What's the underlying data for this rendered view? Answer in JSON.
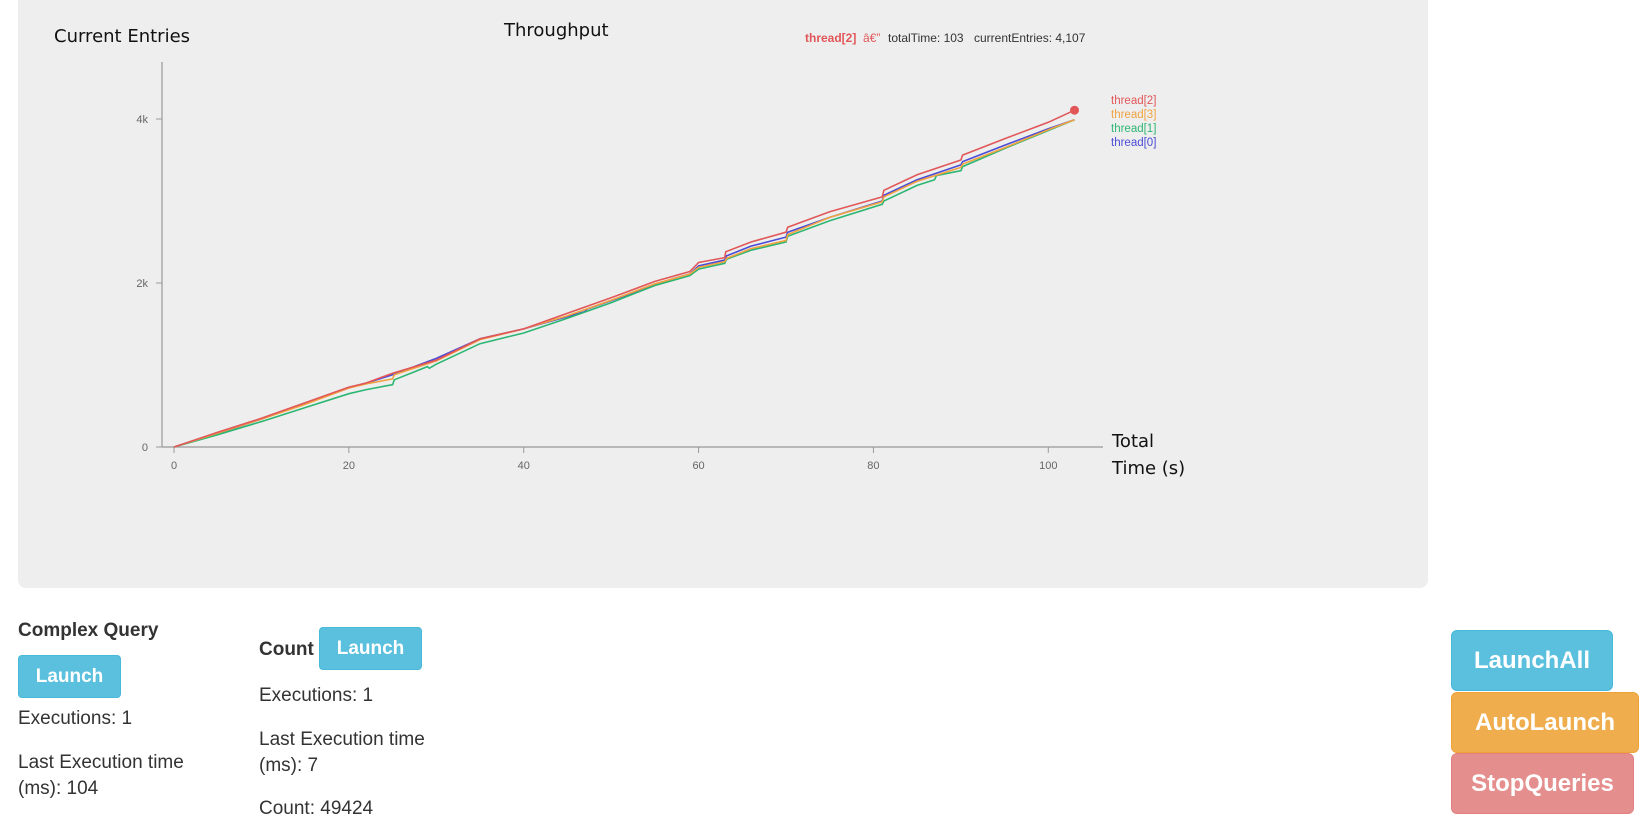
{
  "chart": {
    "title": "Throughput",
    "y_axis_label": "Current Entries",
    "x_axis_label_line1": "Total",
    "x_axis_label_line2": "Time (s)",
    "hover": {
      "series": "thread[2]",
      "sep": "â€”",
      "total_time": "totalTime: 103",
      "current_entries": "currentEntries: 4,107"
    }
  },
  "chart_data": {
    "type": "line",
    "title": "Throughput",
    "xlabel": "Total Time (s)",
    "ylabel": "Current Entries",
    "xlim": [
      0,
      105
    ],
    "ylim": [
      0,
      4500
    ],
    "x_ticks": [
      "0",
      "20",
      "40",
      "60",
      "80",
      "100"
    ],
    "y_ticks": [
      "0",
      "2k",
      "4k"
    ],
    "x_tick_values": [
      0,
      20,
      40,
      60,
      80,
      100
    ],
    "y_tick_values": [
      0,
      2000,
      4000
    ],
    "legend_position": "right",
    "highlighted_point": {
      "series": "thread[2]",
      "x": 103,
      "y": 4107
    },
    "series": [
      {
        "name": "thread[2]",
        "color": "#e15759",
        "points": [
          [
            0,
            0
          ],
          [
            5,
            180
          ],
          [
            10,
            350
          ],
          [
            15,
            540
          ],
          [
            20,
            730
          ],
          [
            22,
            780
          ],
          [
            25,
            900
          ],
          [
            30,
            1060
          ],
          [
            35,
            1320
          ],
          [
            40,
            1440
          ],
          [
            45,
            1630
          ],
          [
            50,
            1820
          ],
          [
            55,
            2020
          ],
          [
            59,
            2140
          ],
          [
            60,
            2250
          ],
          [
            63,
            2310
          ],
          [
            63.1,
            2380
          ],
          [
            66,
            2500
          ],
          [
            70,
            2620
          ],
          [
            70.2,
            2680
          ],
          [
            75,
            2870
          ],
          [
            81,
            3050
          ],
          [
            81.2,
            3130
          ],
          [
            85,
            3320
          ],
          [
            90,
            3500
          ],
          [
            90.2,
            3560
          ],
          [
            95,
            3760
          ],
          [
            100,
            3960
          ],
          [
            103,
            4107
          ]
        ]
      },
      {
        "name": "thread[3]",
        "color": "#f1a340",
        "points": [
          [
            0,
            0
          ],
          [
            5,
            170
          ],
          [
            10,
            340
          ],
          [
            15,
            520
          ],
          [
            20,
            720
          ],
          [
            22,
            770
          ],
          [
            25,
            830
          ],
          [
            25.2,
            880
          ],
          [
            30,
            1050
          ],
          [
            35,
            1310
          ],
          [
            40,
            1440
          ],
          [
            45,
            1600
          ],
          [
            50,
            1790
          ],
          [
            55,
            1990
          ],
          [
            59,
            2110
          ],
          [
            60,
            2190
          ],
          [
            63,
            2260
          ],
          [
            63.2,
            2300
          ],
          [
            66,
            2420
          ],
          [
            70,
            2520
          ],
          [
            70.2,
            2590
          ],
          [
            75,
            2800
          ],
          [
            81,
            2990
          ],
          [
            81.2,
            3050
          ],
          [
            85,
            3240
          ],
          [
            90,
            3410
          ],
          [
            90.2,
            3450
          ],
          [
            95,
            3650
          ],
          [
            100,
            3870
          ],
          [
            103,
            3990
          ]
        ]
      },
      {
        "name": "thread[1]",
        "color": "#2cb673",
        "points": [
          [
            0,
            0
          ],
          [
            5,
            150
          ],
          [
            10,
            310
          ],
          [
            15,
            480
          ],
          [
            20,
            650
          ],
          [
            22,
            700
          ],
          [
            25,
            760
          ],
          [
            25.2,
            820
          ],
          [
            29,
            980
          ],
          [
            29.2,
            960
          ],
          [
            30,
            1010
          ],
          [
            35,
            1260
          ],
          [
            40,
            1390
          ],
          [
            45,
            1570
          ],
          [
            50,
            1760
          ],
          [
            55,
            1970
          ],
          [
            59,
            2090
          ],
          [
            60,
            2170
          ],
          [
            63,
            2240
          ],
          [
            63.2,
            2290
          ],
          [
            66,
            2400
          ],
          [
            70,
            2500
          ],
          [
            70.2,
            2570
          ],
          [
            75,
            2760
          ],
          [
            81,
            2960
          ],
          [
            81.2,
            3000
          ],
          [
            85,
            3190
          ],
          [
            87,
            3260
          ],
          [
            87.2,
            3310
          ],
          [
            90,
            3370
          ],
          [
            90.2,
            3420
          ],
          [
            95,
            3640
          ],
          [
            100,
            3860
          ],
          [
            103,
            3990
          ]
        ]
      },
      {
        "name": "thread[0]",
        "color": "#4a4bd6",
        "points": [
          [
            0,
            0
          ],
          [
            6,
            200
          ],
          [
            10,
            340
          ],
          [
            15,
            530
          ],
          [
            20,
            720
          ],
          [
            22,
            780
          ],
          [
            25,
            880
          ],
          [
            30,
            1080
          ],
          [
            35,
            1320
          ],
          [
            40,
            1440
          ],
          [
            47,
            1650
          ],
          [
            47.2,
            1680
          ],
          [
            52,
            1860
          ],
          [
            57,
            2050
          ],
          [
            59,
            2110
          ],
          [
            60,
            2210
          ],
          [
            63,
            2280
          ],
          [
            63.2,
            2330
          ],
          [
            66,
            2450
          ],
          [
            70,
            2560
          ],
          [
            70.2,
            2620
          ],
          [
            75,
            2800
          ],
          [
            81,
            3000
          ],
          [
            81.2,
            3070
          ],
          [
            85,
            3260
          ],
          [
            90,
            3440
          ],
          [
            90.2,
            3480
          ],
          [
            95,
            3680
          ],
          [
            100,
            3880
          ],
          [
            103,
            3990
          ]
        ]
      }
    ]
  },
  "sections": {
    "complex": {
      "title": "Complex Query",
      "button": "Launch",
      "executions": "Executions: 1",
      "last_exec_line1": "Last Execution time",
      "last_exec_line2": "(ms): 104"
    },
    "count": {
      "title": "Count",
      "button": "Launch",
      "executions": "Executions: 1",
      "last_exec_line1": "Last Execution time",
      "last_exec_line2": "(ms): 7",
      "count": "Count: 49424"
    }
  },
  "controls": {
    "launch_all": "LaunchAll",
    "auto_launch": "AutoLaunch",
    "stop_queries": "StopQueries",
    "colors": {
      "launch_all": "#5bc0de",
      "auto_launch": "#f0ad4e",
      "stop_queries": "#e58e8e"
    }
  }
}
